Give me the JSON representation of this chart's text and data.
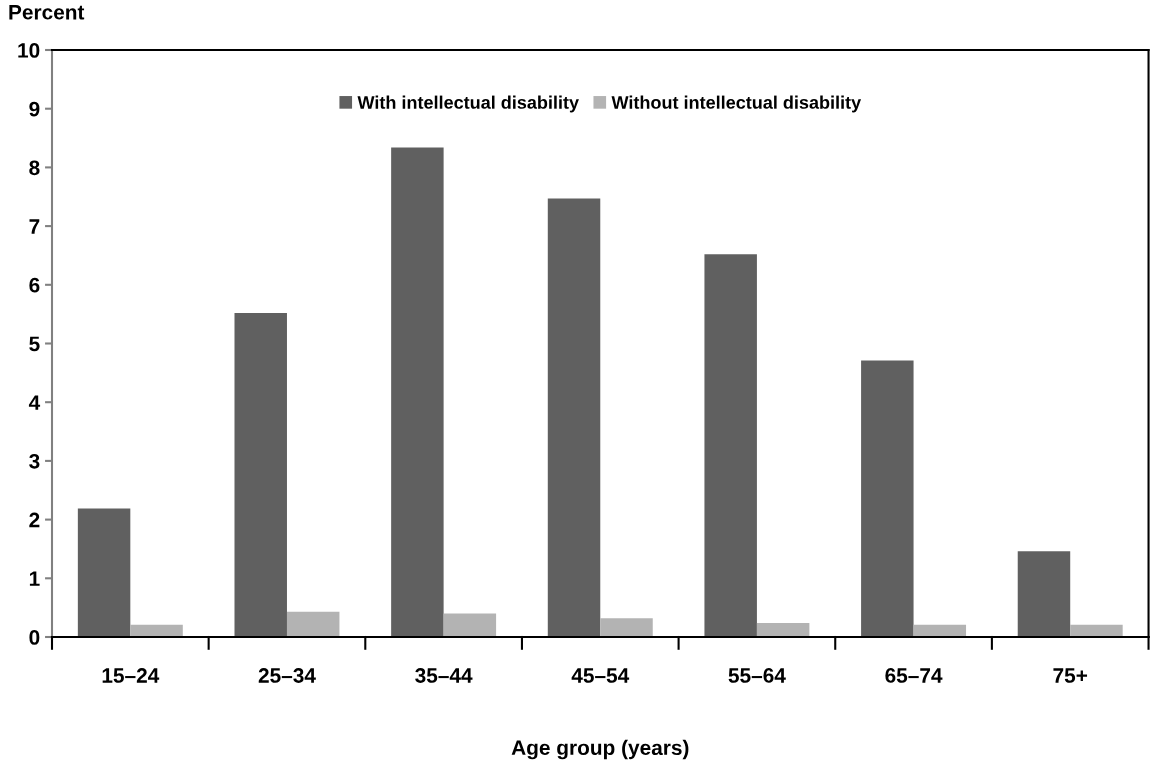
{
  "chart_data": {
    "type": "bar",
    "ylabel": "Percent",
    "xlabel": "Age group (years)",
    "categories": [
      "15–24",
      "25–34",
      "35–44",
      "45–54",
      "55–64",
      "65–74",
      "75+"
    ],
    "series": [
      {
        "name": "With intellectual disability",
        "color": "#606060",
        "values": [
          2.19,
          5.52,
          8.34,
          7.47,
          6.52,
          4.71,
          1.46
        ]
      },
      {
        "name": "Without intellectual disability",
        "color": "#b3b3b3",
        "values": [
          0.21,
          0.43,
          0.4,
          0.32,
          0.24,
          0.21,
          0.21
        ]
      }
    ],
    "ylim": [
      0,
      10
    ],
    "yticks": [
      0,
      1,
      2,
      3,
      4,
      5,
      6,
      7,
      8,
      9,
      10
    ],
    "grid": false,
    "legend": "top"
  }
}
